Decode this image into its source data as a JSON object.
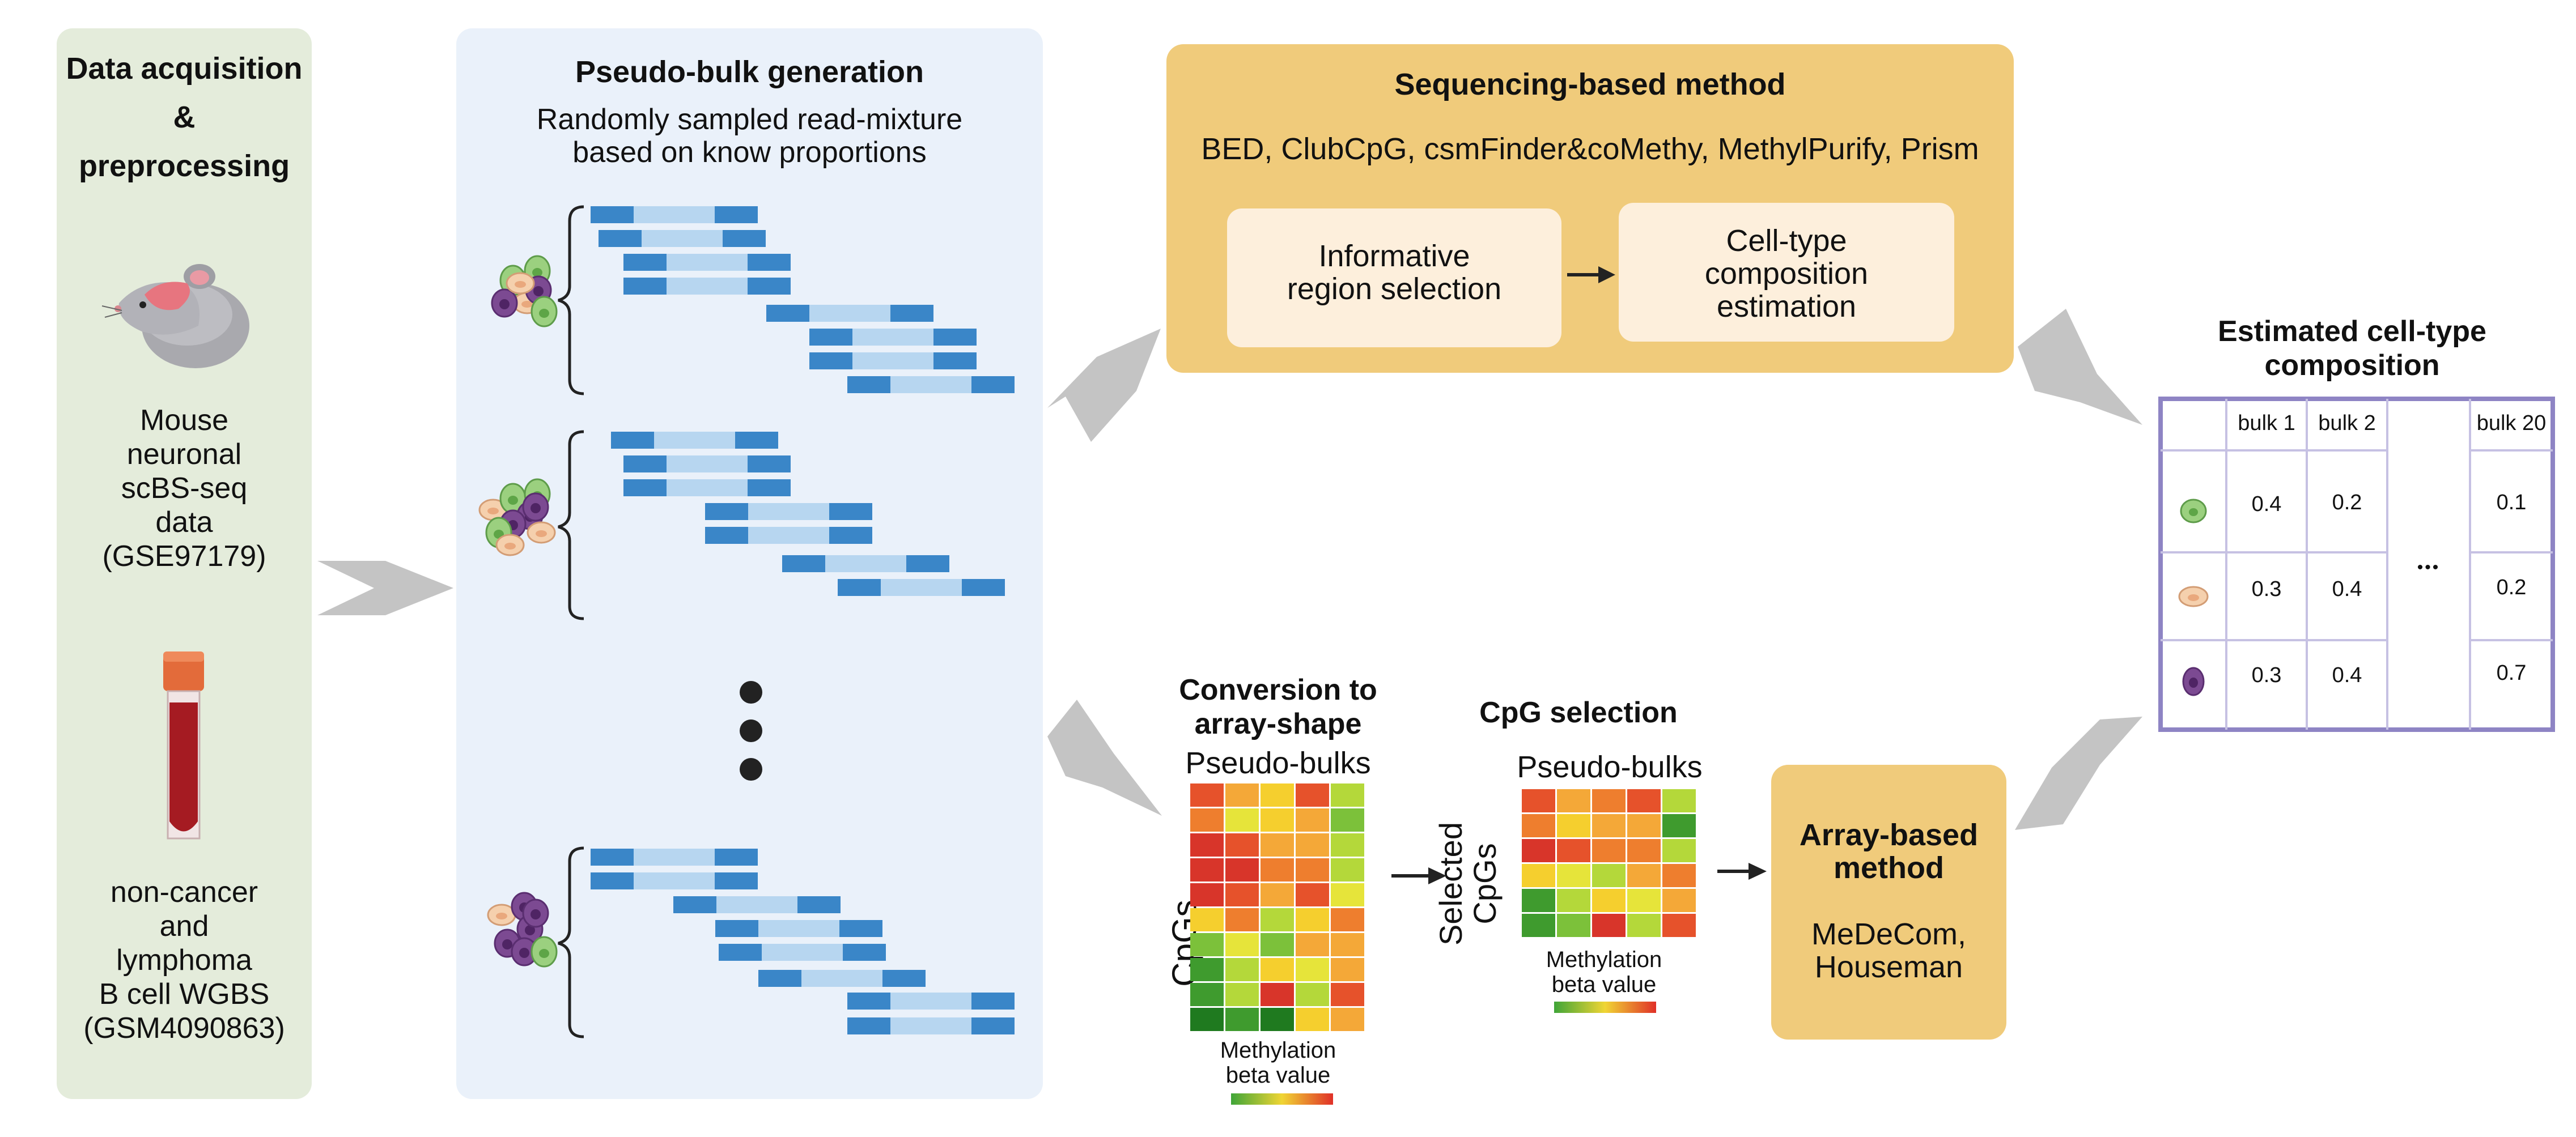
{
  "acquisition": {
    "title_line1": "Data acquisition",
    "title_line2": "&",
    "title_line3": "preprocessing",
    "mouse_lines": [
      "Mouse",
      "neuronal",
      "scBS-seq",
      "data",
      "(GSE97179)"
    ],
    "human_lines": [
      "non-cancer",
      "and",
      "lymphoma",
      "B cell WGBS",
      "(GSM4090863)"
    ]
  },
  "pseudo_bulk": {
    "title": "Pseudo-bulk generation",
    "subtitle_line1": "Randomly sampled read-mixture",
    "subtitle_line2": "based on know proportions"
  },
  "sequencing": {
    "title": "Sequencing-based method",
    "methods": "BED, ClubCpG, csmFinder&coMethy, MethylPurify, Prism",
    "step1_line1": "Informative",
    "step1_line2": "region selection",
    "step2_line1": "Cell-type",
    "step2_line2": "composition",
    "step2_line3": "estimation"
  },
  "conversion": {
    "title_line1": "Conversion to",
    "title_line2": "array-shape",
    "heatmap_top_label": "Pseudo-bulks",
    "heatmap_side_label": "CpGs",
    "legend_line1": "Methylation",
    "legend_line2": "beta value"
  },
  "cpg_selection": {
    "title": "CpG selection",
    "heatmap_top_label": "Pseudo-bulks",
    "side_label_line1": "Selected",
    "side_label_line2": "CpGs",
    "legend_line1": "Methylation",
    "legend_line2": "beta value"
  },
  "array_method": {
    "title_line1": "Array-based",
    "title_line2": "method",
    "methods_line1": "MeDeCom,",
    "methods_line2": "Houseman"
  },
  "result": {
    "title_line1": "Estimated cell-type",
    "title_line2": "composition",
    "columns": [
      "bulk 1",
      "bulk 2",
      "bulk 20"
    ],
    "ellipsis": "•••",
    "rows": [
      {
        "cell": "green-cell-icon",
        "values": [
          "0.4",
          "0.2",
          "0.1"
        ]
      },
      {
        "cell": "peach-cell-icon",
        "values": [
          "0.3",
          "0.4",
          "0.2"
        ]
      },
      {
        "cell": "purple-cell-icon",
        "values": [
          "0.3",
          "0.4",
          "0.7"
        ]
      }
    ]
  },
  "colors": {
    "acquisition_bg": "#e4ecdb",
    "pseudo_bg": "#eaf1fa",
    "method_bg": "#f0cb7b",
    "step_bg": "#fdefdc",
    "read_dark": "#3a86c8",
    "read_light": "#b7d6f0",
    "table_border": "#8e84c4",
    "arrow_gray": "#c4c4c4"
  }
}
